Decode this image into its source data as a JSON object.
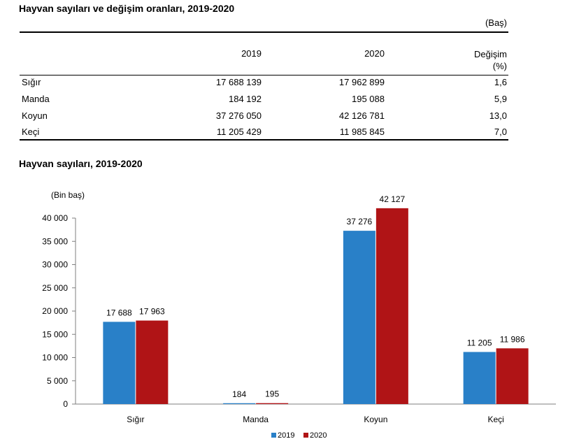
{
  "table": {
    "title": "Hayvan sayıları ve değişim oranları, 2019-2020",
    "unit": "(Baş)",
    "headers": [
      "2019",
      "2020",
      "Değişim",
      "(%)"
    ],
    "rows": [
      {
        "name": "Sığır",
        "y2019": "17 688 139",
        "y2020": "17 962 899",
        "change": "1,6"
      },
      {
        "name": "Manda",
        "y2019": "184 192",
        "y2020": "195 088",
        "change": "5,9"
      },
      {
        "name": "Koyun",
        "y2019": "37 276 050",
        "y2020": "42 126 781",
        "change": "13,0"
      },
      {
        "name": "Keçi",
        "y2019": "11 205 429",
        "y2020": "11 985 845",
        "change": "7,0"
      }
    ]
  },
  "chart_data": {
    "type": "bar",
    "title": "Hayvan sayıları, 2019-2020",
    "ylabel": "(Bin baş)",
    "xlabel": "",
    "categories": [
      "Sığır",
      "Manda",
      "Koyun",
      "Keçi"
    ],
    "series": [
      {
        "name": "2019",
        "color": "#2980c8",
        "values": [
          17688,
          184,
          37276,
          11205
        ],
        "labels": [
          "17 688",
          "184",
          "37 276",
          "11 205"
        ]
      },
      {
        "name": "2020",
        "color": "#b01416",
        "values": [
          17963,
          195,
          42127,
          11986
        ],
        "labels": [
          "17 963",
          "195",
          "42 127",
          "11 986"
        ]
      }
    ],
    "ylim": [
      0,
      40000
    ],
    "yticks": [
      0,
      5000,
      10000,
      15000,
      20000,
      25000,
      30000,
      35000,
      40000
    ],
    "ytick_labels": [
      "0",
      "5 000",
      "10 000",
      "15 000",
      "20 000",
      "25 000",
      "30 000",
      "35 000",
      "40 000"
    ],
    "grid": false,
    "legend": "bottom-center"
  }
}
